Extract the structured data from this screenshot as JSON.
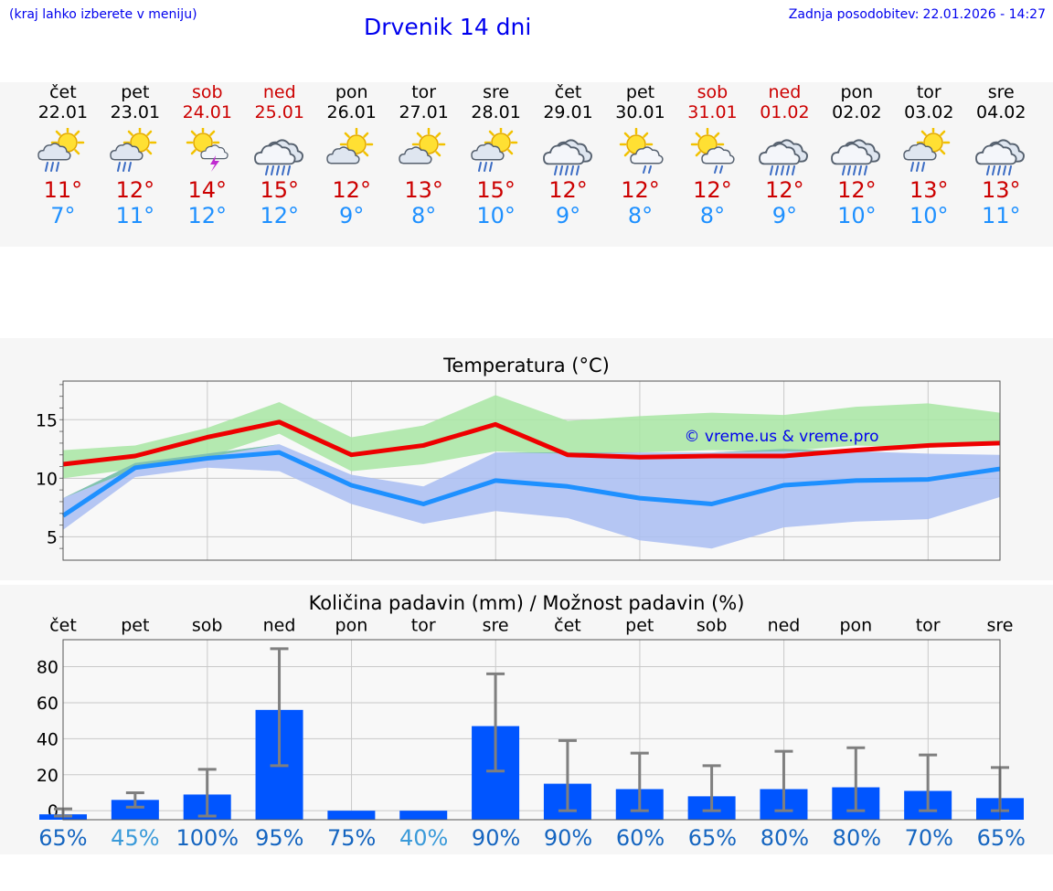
{
  "header": {
    "hint": "(kraj lahko izberete v meniju)",
    "title": "Drvenik 14 dni",
    "updated_label": "Zadnja posodobitev:",
    "updated_value": "22.01.2026 - 14:27"
  },
  "days": [
    {
      "name": "čet",
      "date": "22.01",
      "weekend": false,
      "icon": "sun-cloud-rain-icon",
      "tmax": "11°",
      "tmin": "7°",
      "prob": "65%",
      "prob_color": "#1565c0"
    },
    {
      "name": "pet",
      "date": "23.01",
      "weekend": false,
      "icon": "sun-cloud-rain-icon",
      "tmax": "12°",
      "tmin": "11°",
      "prob": "45%",
      "prob_color": "#3a9ad9"
    },
    {
      "name": "sob",
      "date": "24.01",
      "weekend": true,
      "icon": "sun-thunderstorm-icon",
      "tmax": "14°",
      "tmin": "12°",
      "prob": "100%",
      "prob_color": "#1565c0"
    },
    {
      "name": "ned",
      "date": "25.01",
      "weekend": true,
      "icon": "cloud-heavy-rain-icon",
      "tmax": "15°",
      "tmin": "12°",
      "prob": "95%",
      "prob_color": "#1565c0"
    },
    {
      "name": "pon",
      "date": "26.01",
      "weekend": false,
      "icon": "sun-cloud-icon",
      "tmax": "12°",
      "tmin": "9°",
      "prob": "75%",
      "prob_color": "#1565c0"
    },
    {
      "name": "tor",
      "date": "27.01",
      "weekend": false,
      "icon": "sun-cloud-icon",
      "tmax": "13°",
      "tmin": "8°",
      "prob": "40%",
      "prob_color": "#3a9ad9"
    },
    {
      "name": "sre",
      "date": "28.01",
      "weekend": false,
      "icon": "sun-cloud-rain-icon",
      "tmax": "15°",
      "tmin": "10°",
      "prob": "90%",
      "prob_color": "#1565c0"
    },
    {
      "name": "čet",
      "date": "29.01",
      "weekend": false,
      "icon": "cloud-heavy-rain-icon",
      "tmax": "12°",
      "tmin": "9°",
      "prob": "90%",
      "prob_color": "#1565c0"
    },
    {
      "name": "pet",
      "date": "30.01",
      "weekend": false,
      "icon": "sun-cloud-light-rain-icon",
      "tmax": "12°",
      "tmin": "8°",
      "prob": "60%",
      "prob_color": "#1565c0"
    },
    {
      "name": "sob",
      "date": "31.01",
      "weekend": true,
      "icon": "sun-cloud-light-rain-icon",
      "tmax": "12°",
      "tmin": "8°",
      "prob": "65%",
      "prob_color": "#1565c0"
    },
    {
      "name": "ned",
      "date": "01.02",
      "weekend": true,
      "icon": "cloud-heavy-rain-icon",
      "tmax": "12°",
      "tmin": "9°",
      "prob": "80%",
      "prob_color": "#1565c0"
    },
    {
      "name": "pon",
      "date": "02.02",
      "weekend": false,
      "icon": "cloud-heavy-rain-icon",
      "tmax": "12°",
      "tmin": "10°",
      "prob": "80%",
      "prob_color": "#1565c0"
    },
    {
      "name": "tor",
      "date": "03.02",
      "weekend": false,
      "icon": "sun-cloud-rain-icon",
      "tmax": "13°",
      "tmin": "10°",
      "prob": "70%",
      "prob_color": "#1565c0"
    },
    {
      "name": "sre",
      "date": "04.02",
      "weekend": false,
      "icon": "cloud-heavy-rain-icon",
      "tmax": "13°",
      "tmin": "11°",
      "prob": "65%",
      "prob_color": "#1565c0"
    }
  ],
  "chart_data": [
    {
      "type": "line",
      "title": "Temperatura (°C)",
      "watermark": "© vreme.us & vreme.pro",
      "ylim": [
        3,
        18.3
      ],
      "yticks": [
        5,
        10,
        15
      ],
      "x": [
        0,
        1,
        2,
        3,
        4,
        5,
        6,
        7,
        8,
        9,
        10,
        11,
        12,
        13
      ],
      "series": [
        {
          "name": "max",
          "color": "#ee0000",
          "values": [
            11.2,
            11.9,
            13.5,
            14.8,
            12.0,
            12.8,
            14.6,
            12.0,
            11.8,
            11.9,
            11.9,
            12.4,
            12.8,
            13.0
          ]
        },
        {
          "name": "min",
          "color": "#1e90ff",
          "values": [
            6.8,
            10.9,
            11.7,
            12.2,
            9.4,
            7.8,
            9.8,
            9.3,
            8.3,
            7.8,
            9.4,
            9.8,
            9.9,
            10.8
          ]
        }
      ],
      "bands": [
        {
          "name": "max-range",
          "color": "#a8e6a3",
          "low": [
            10.0,
            10.8,
            11.8,
            13.8,
            10.6,
            11.2,
            12.3,
            12.1,
            12.2,
            12.4,
            12.3,
            12.8,
            12.6,
            12.9
          ],
          "high": [
            12.4,
            12.8,
            14.3,
            16.5,
            13.5,
            14.5,
            17.1,
            14.9,
            15.3,
            15.6,
            15.4,
            16.1,
            16.4,
            15.6
          ]
        },
        {
          "name": "min-range",
          "color": "#a9bdf2",
          "low": [
            5.6,
            10.1,
            10.9,
            10.6,
            7.8,
            6.1,
            7.2,
            6.6,
            4.7,
            4.0,
            5.8,
            6.3,
            6.5,
            8.4
          ],
          "high": [
            8.3,
            11.3,
            12.1,
            12.9,
            10.3,
            9.3,
            12.2,
            12.2,
            12.2,
            12.2,
            12.5,
            12.3,
            12.1,
            12.0
          ]
        }
      ]
    },
    {
      "type": "bar",
      "title": "Količina padavin (mm) / Možnost padavin (%)",
      "categories": [
        "čet",
        "pet",
        "sob",
        "ned",
        "pon",
        "tor",
        "sre",
        "čet",
        "pet",
        "sob",
        "ned",
        "pon",
        "tor",
        "sre"
      ],
      "ylim": [
        -5,
        95
      ],
      "yticks": [
        0,
        20,
        40,
        60,
        80
      ],
      "bar_color": "#0055ff",
      "values": [
        -2,
        6,
        9,
        56,
        0,
        0,
        47,
        15,
        12,
        8,
        12,
        13,
        11,
        7
      ],
      "error_low": [
        -3,
        2,
        -3,
        25,
        0,
        0,
        22,
        0,
        0,
        0,
        0,
        0,
        0,
        0
      ],
      "error_high": [
        1,
        10,
        23,
        90,
        0,
        0,
        76,
        39,
        32,
        25,
        33,
        35,
        31,
        24
      ]
    }
  ]
}
